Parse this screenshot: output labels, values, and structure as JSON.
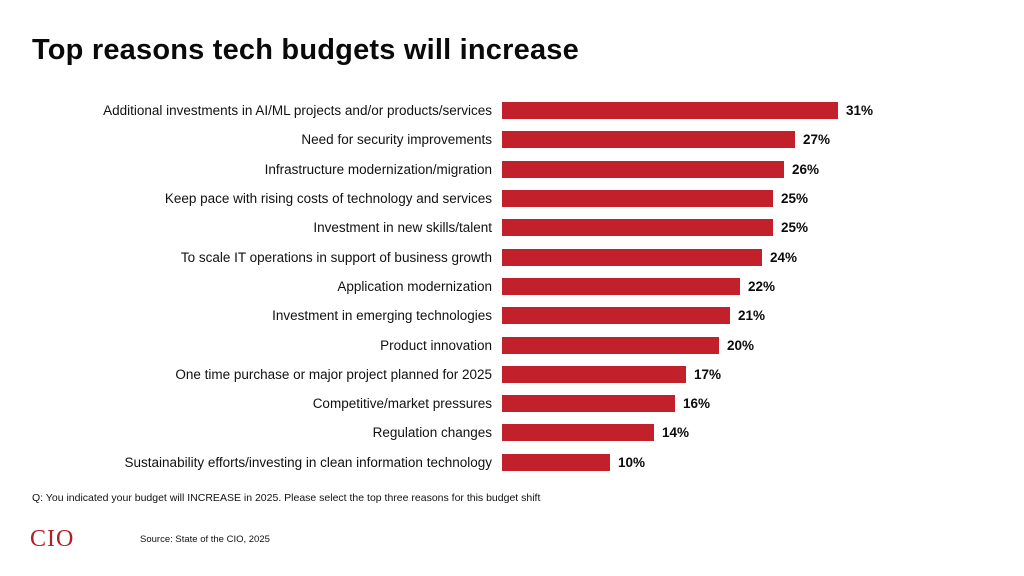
{
  "title": "Top reasons tech budgets will increase",
  "footnote": "Q: You indicated your budget will INCREASE in 2025.  Please select the top three reasons for this budget shift",
  "footer": {
    "logo": "CIO",
    "source": "Source: State of the CIO, 2025"
  },
  "chart_data": {
    "type": "bar",
    "orientation": "horizontal",
    "title": "Top reasons tech budgets will increase",
    "categories": [
      "Additional investments in AI/ML projects and/or products/services",
      "Need for security improvements",
      "Infrastructure modernization/migration",
      "Keep pace with rising costs of technology and services",
      "Investment in new skills/talent",
      "To scale IT operations in support of business growth",
      "Application modernization",
      "Investment in emerging technologies",
      "Product innovation",
      "One time purchase or major project planned for 2025",
      "Competitive/market pressures",
      "Regulation changes",
      "Sustainability efforts/investing in clean information technology"
    ],
    "values": [
      31,
      27,
      26,
      25,
      25,
      24,
      22,
      21,
      20,
      17,
      16,
      14,
      10
    ],
    "value_suffix": "%",
    "xlim": [
      0,
      31
    ],
    "bar_color": "#c2202a",
    "grid": false,
    "legend": false,
    "data_labels": true
  }
}
